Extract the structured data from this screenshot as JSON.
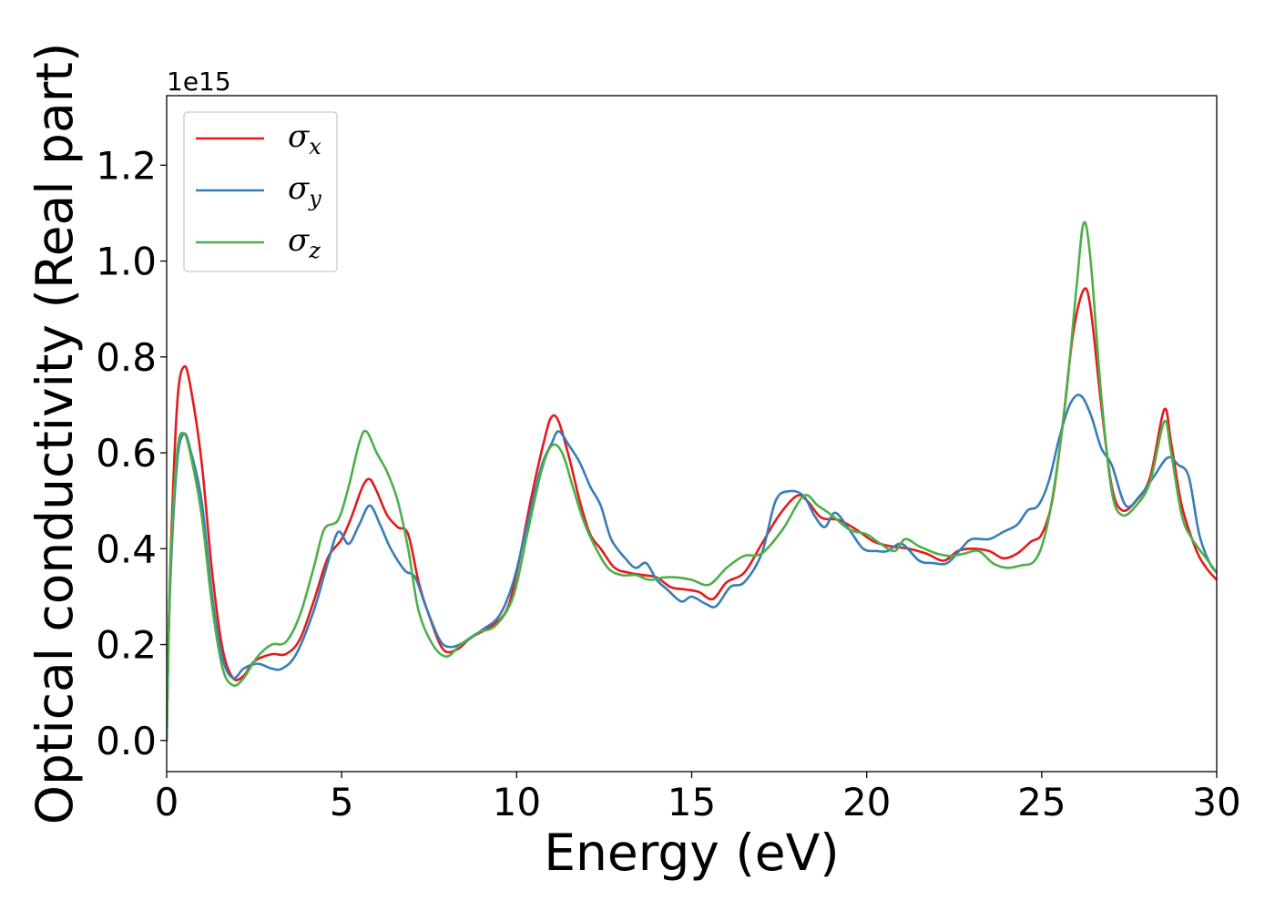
{
  "chart_data": {
    "type": "line",
    "title": "",
    "xlabel": "Energy (eV)",
    "ylabel": "Optical conductivity (Real part)",
    "y_offset_text": "1e15",
    "xlim": [
      0,
      30
    ],
    "ylim": [
      -0.065,
      1.345
    ],
    "xticks": [
      0,
      5,
      10,
      15,
      20,
      25,
      30
    ],
    "xtick_labels": [
      "0",
      "5",
      "10",
      "15",
      "20",
      "25",
      "30"
    ],
    "yticks": [
      0.0,
      0.2,
      0.4,
      0.6,
      0.8,
      1.0,
      1.2
    ],
    "ytick_labels": [
      "0.0",
      "0.2",
      "0.4",
      "0.6",
      "0.8",
      "1.0",
      "1.2"
    ],
    "grid": false,
    "legend_position": "upper-left",
    "series": [
      {
        "name": "σx",
        "symbol": "σ",
        "subscript": "x",
        "color": "#e41a1c",
        "points": [
          [
            0,
            0
          ],
          [
            0.1,
            0.35
          ],
          [
            0.3,
            0.7
          ],
          [
            0.5,
            0.78
          ],
          [
            0.7,
            0.73
          ],
          [
            1.0,
            0.58
          ],
          [
            1.3,
            0.35
          ],
          [
            1.6,
            0.19
          ],
          [
            1.9,
            0.13
          ],
          [
            2.2,
            0.135
          ],
          [
            2.5,
            0.165
          ],
          [
            3.0,
            0.18
          ],
          [
            3.4,
            0.18
          ],
          [
            3.8,
            0.21
          ],
          [
            4.2,
            0.29
          ],
          [
            4.6,
            0.38
          ],
          [
            5.0,
            0.42
          ],
          [
            5.3,
            0.47
          ],
          [
            5.6,
            0.53
          ],
          [
            5.8,
            0.545
          ],
          [
            6.0,
            0.52
          ],
          [
            6.3,
            0.47
          ],
          [
            6.6,
            0.445
          ],
          [
            6.9,
            0.43
          ],
          [
            7.2,
            0.33
          ],
          [
            7.5,
            0.26
          ],
          [
            7.9,
            0.19
          ],
          [
            8.3,
            0.19
          ],
          [
            8.7,
            0.215
          ],
          [
            9.2,
            0.235
          ],
          [
            9.7,
            0.27
          ],
          [
            10.0,
            0.35
          ],
          [
            10.4,
            0.5
          ],
          [
            10.8,
            0.63
          ],
          [
            11.0,
            0.675
          ],
          [
            11.2,
            0.665
          ],
          [
            11.5,
            0.59
          ],
          [
            11.8,
            0.5
          ],
          [
            12.1,
            0.43
          ],
          [
            12.4,
            0.4
          ],
          [
            12.8,
            0.36
          ],
          [
            13.2,
            0.35
          ],
          [
            13.6,
            0.345
          ],
          [
            14.0,
            0.34
          ],
          [
            14.4,
            0.32
          ],
          [
            14.8,
            0.315
          ],
          [
            15.2,
            0.31
          ],
          [
            15.6,
            0.295
          ],
          [
            16.0,
            0.33
          ],
          [
            16.5,
            0.35
          ],
          [
            17.0,
            0.41
          ],
          [
            17.5,
            0.47
          ],
          [
            18.0,
            0.51
          ],
          [
            18.3,
            0.5
          ],
          [
            18.7,
            0.465
          ],
          [
            19.2,
            0.46
          ],
          [
            19.7,
            0.44
          ],
          [
            20.2,
            0.415
          ],
          [
            20.7,
            0.405
          ],
          [
            21.2,
            0.4
          ],
          [
            21.7,
            0.39
          ],
          [
            22.2,
            0.375
          ],
          [
            22.6,
            0.395
          ],
          [
            23.0,
            0.4
          ],
          [
            23.5,
            0.395
          ],
          [
            23.9,
            0.38
          ],
          [
            24.3,
            0.39
          ],
          [
            24.7,
            0.415
          ],
          [
            25.0,
            0.43
          ],
          [
            25.3,
            0.5
          ],
          [
            25.6,
            0.66
          ],
          [
            25.9,
            0.85
          ],
          [
            26.2,
            0.94
          ],
          [
            26.4,
            0.9
          ],
          [
            26.7,
            0.7
          ],
          [
            27.0,
            0.53
          ],
          [
            27.3,
            0.48
          ],
          [
            27.7,
            0.5
          ],
          [
            28.1,
            0.55
          ],
          [
            28.5,
            0.69
          ],
          [
            28.7,
            0.62
          ],
          [
            29.0,
            0.49
          ],
          [
            29.4,
            0.4
          ],
          [
            29.7,
            0.36
          ],
          [
            30.0,
            0.335
          ]
        ]
      },
      {
        "name": "σy",
        "symbol": "σ",
        "subscript": "y",
        "color": "#377eb8",
        "points": [
          [
            0,
            0
          ],
          [
            0.1,
            0.32
          ],
          [
            0.3,
            0.58
          ],
          [
            0.5,
            0.64
          ],
          [
            0.7,
            0.6
          ],
          [
            1.0,
            0.5
          ],
          [
            1.3,
            0.3
          ],
          [
            1.6,
            0.17
          ],
          [
            1.9,
            0.13
          ],
          [
            2.2,
            0.15
          ],
          [
            2.6,
            0.16
          ],
          [
            3.0,
            0.15
          ],
          [
            3.3,
            0.15
          ],
          [
            3.7,
            0.18
          ],
          [
            4.2,
            0.27
          ],
          [
            4.6,
            0.37
          ],
          [
            4.9,
            0.435
          ],
          [
            5.2,
            0.41
          ],
          [
            5.5,
            0.45
          ],
          [
            5.8,
            0.49
          ],
          [
            6.1,
            0.45
          ],
          [
            6.4,
            0.4
          ],
          [
            6.8,
            0.355
          ],
          [
            7.1,
            0.34
          ],
          [
            7.4,
            0.28
          ],
          [
            7.8,
            0.21
          ],
          [
            8.1,
            0.195
          ],
          [
            8.5,
            0.205
          ],
          [
            9.0,
            0.23
          ],
          [
            9.5,
            0.26
          ],
          [
            9.9,
            0.33
          ],
          [
            10.3,
            0.45
          ],
          [
            10.7,
            0.57
          ],
          [
            11.0,
            0.62
          ],
          [
            11.2,
            0.645
          ],
          [
            11.5,
            0.615
          ],
          [
            11.8,
            0.58
          ],
          [
            12.1,
            0.53
          ],
          [
            12.4,
            0.49
          ],
          [
            12.7,
            0.42
          ],
          [
            13.1,
            0.38
          ],
          [
            13.4,
            0.36
          ],
          [
            13.7,
            0.37
          ],
          [
            14.0,
            0.335
          ],
          [
            14.3,
            0.315
          ],
          [
            14.7,
            0.29
          ],
          [
            15.0,
            0.3
          ],
          [
            15.4,
            0.285
          ],
          [
            15.7,
            0.28
          ],
          [
            16.1,
            0.32
          ],
          [
            16.5,
            0.33
          ],
          [
            17.0,
            0.39
          ],
          [
            17.4,
            0.5
          ],
          [
            17.8,
            0.52
          ],
          [
            18.2,
            0.51
          ],
          [
            18.5,
            0.47
          ],
          [
            18.8,
            0.445
          ],
          [
            19.1,
            0.475
          ],
          [
            19.5,
            0.44
          ],
          [
            19.9,
            0.4
          ],
          [
            20.3,
            0.395
          ],
          [
            20.6,
            0.395
          ],
          [
            21.0,
            0.41
          ],
          [
            21.5,
            0.375
          ],
          [
            21.9,
            0.37
          ],
          [
            22.3,
            0.37
          ],
          [
            22.7,
            0.4
          ],
          [
            23.0,
            0.42
          ],
          [
            23.5,
            0.42
          ],
          [
            23.9,
            0.435
          ],
          [
            24.3,
            0.45
          ],
          [
            24.6,
            0.48
          ],
          [
            24.9,
            0.49
          ],
          [
            25.2,
            0.54
          ],
          [
            25.5,
            0.63
          ],
          [
            25.8,
            0.7
          ],
          [
            26.1,
            0.72
          ],
          [
            26.4,
            0.68
          ],
          [
            26.7,
            0.61
          ],
          [
            27.0,
            0.575
          ],
          [
            27.4,
            0.49
          ],
          [
            27.8,
            0.51
          ],
          [
            28.2,
            0.55
          ],
          [
            28.6,
            0.59
          ],
          [
            28.9,
            0.575
          ],
          [
            29.2,
            0.55
          ],
          [
            29.5,
            0.43
          ],
          [
            29.8,
            0.37
          ],
          [
            30.0,
            0.35
          ]
        ]
      },
      {
        "name": "σz",
        "symbol": "σ",
        "subscript": "z",
        "color": "#4daf4a",
        "points": [
          [
            0,
            0
          ],
          [
            0.1,
            0.34
          ],
          [
            0.3,
            0.6
          ],
          [
            0.5,
            0.64
          ],
          [
            0.7,
            0.59
          ],
          [
            1.0,
            0.47
          ],
          [
            1.3,
            0.28
          ],
          [
            1.6,
            0.15
          ],
          [
            1.9,
            0.115
          ],
          [
            2.2,
            0.13
          ],
          [
            2.6,
            0.175
          ],
          [
            3.0,
            0.2
          ],
          [
            3.4,
            0.205
          ],
          [
            3.8,
            0.26
          ],
          [
            4.2,
            0.36
          ],
          [
            4.5,
            0.44
          ],
          [
            4.9,
            0.46
          ],
          [
            5.2,
            0.53
          ],
          [
            5.5,
            0.62
          ],
          [
            5.7,
            0.645
          ],
          [
            6.0,
            0.6
          ],
          [
            6.3,
            0.56
          ],
          [
            6.6,
            0.5
          ],
          [
            6.9,
            0.4
          ],
          [
            7.2,
            0.27
          ],
          [
            7.6,
            0.2
          ],
          [
            8.0,
            0.175
          ],
          [
            8.4,
            0.2
          ],
          [
            8.9,
            0.225
          ],
          [
            9.4,
            0.24
          ],
          [
            9.9,
            0.3
          ],
          [
            10.3,
            0.43
          ],
          [
            10.7,
            0.56
          ],
          [
            11.0,
            0.615
          ],
          [
            11.3,
            0.6
          ],
          [
            11.6,
            0.53
          ],
          [
            11.9,
            0.46
          ],
          [
            12.2,
            0.41
          ],
          [
            12.6,
            0.36
          ],
          [
            13.0,
            0.345
          ],
          [
            13.4,
            0.345
          ],
          [
            13.8,
            0.335
          ],
          [
            14.2,
            0.34
          ],
          [
            14.6,
            0.34
          ],
          [
            15.0,
            0.335
          ],
          [
            15.5,
            0.325
          ],
          [
            16.0,
            0.36
          ],
          [
            16.5,
            0.385
          ],
          [
            17.0,
            0.39
          ],
          [
            17.6,
            0.44
          ],
          [
            18.2,
            0.51
          ],
          [
            18.6,
            0.49
          ],
          [
            19.0,
            0.47
          ],
          [
            19.5,
            0.44
          ],
          [
            20.0,
            0.43
          ],
          [
            20.4,
            0.41
          ],
          [
            20.8,
            0.395
          ],
          [
            21.1,
            0.42
          ],
          [
            21.5,
            0.405
          ],
          [
            22.0,
            0.39
          ],
          [
            22.4,
            0.385
          ],
          [
            22.8,
            0.39
          ],
          [
            23.2,
            0.395
          ],
          [
            23.6,
            0.37
          ],
          [
            24.0,
            0.36
          ],
          [
            24.4,
            0.365
          ],
          [
            24.8,
            0.375
          ],
          [
            25.1,
            0.43
          ],
          [
            25.4,
            0.55
          ],
          [
            25.7,
            0.72
          ],
          [
            26.0,
            0.95
          ],
          [
            26.2,
            1.08
          ],
          [
            26.4,
            1.0
          ],
          [
            26.7,
            0.72
          ],
          [
            27.0,
            0.52
          ],
          [
            27.3,
            0.47
          ],
          [
            27.7,
            0.49
          ],
          [
            28.1,
            0.54
          ],
          [
            28.5,
            0.665
          ],
          [
            28.7,
            0.6
          ],
          [
            29.0,
            0.47
          ],
          [
            29.3,
            0.42
          ],
          [
            29.7,
            0.38
          ],
          [
            30.0,
            0.35
          ]
        ]
      }
    ]
  }
}
